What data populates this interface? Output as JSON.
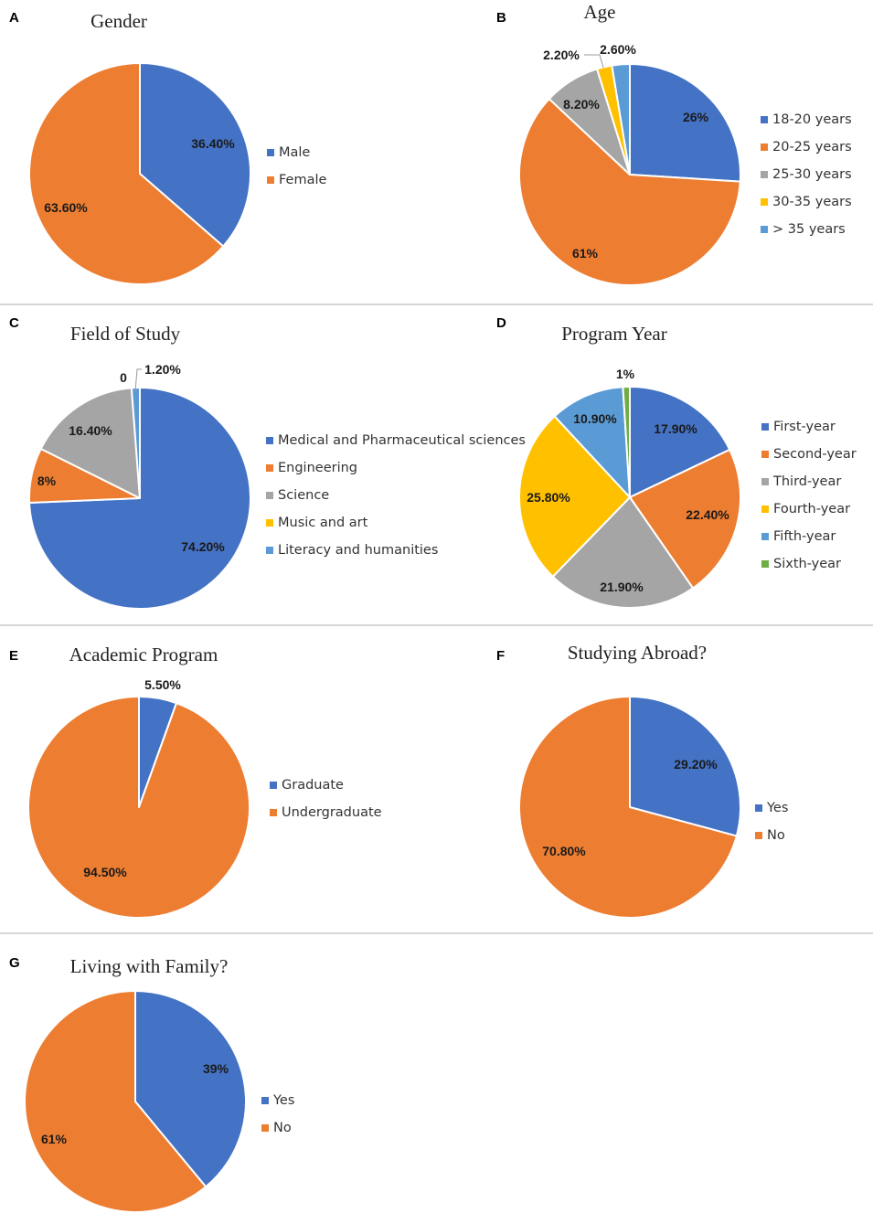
{
  "colors": {
    "blue": "#4472C4",
    "orange": "#ED7D31",
    "gray": "#A5A5A5",
    "yellow": "#FFC000",
    "lightblue": "#5B9BD5",
    "green": "#70AD47"
  },
  "chart_data": [
    {
      "panel": "A",
      "type": "pie",
      "title": "Gender",
      "categories": [
        "Male",
        "Female"
      ],
      "values": [
        36.4,
        63.6
      ],
      "data_labels": [
        "36.40%",
        "63.60%"
      ],
      "series_colors": [
        "blue",
        "orange"
      ],
      "legend_position": "right"
    },
    {
      "panel": "B",
      "type": "pie",
      "title": "Age",
      "categories": [
        "18-20 years",
        "20-25 years",
        "25-30 years",
        "30-35 years",
        "> 35 years"
      ],
      "values": [
        26,
        61,
        8.2,
        2.2,
        2.6
      ],
      "data_labels": [
        "26%",
        "61%",
        "8.20%",
        "2.20%",
        "2.60%"
      ],
      "series_colors": [
        "blue",
        "orange",
        "gray",
        "yellow",
        "lightblue"
      ],
      "legend_position": "right"
    },
    {
      "panel": "C",
      "type": "pie",
      "title": "Field of Study",
      "categories": [
        "Medical and Pharmaceutical sciences",
        "Engineering",
        "Science",
        "Music and art",
        "Literacy and humanities"
      ],
      "values": [
        74.2,
        8,
        16.4,
        0,
        1.2
      ],
      "data_labels": [
        "74.20%",
        "8%",
        "16.40%",
        "0",
        "1.20%"
      ],
      "series_colors": [
        "blue",
        "orange",
        "gray",
        "yellow",
        "lightblue"
      ],
      "legend_position": "right"
    },
    {
      "panel": "D",
      "type": "pie",
      "title": "Program Year",
      "categories": [
        "First-year",
        "Second-year",
        "Third-year",
        "Fourth-year",
        "Fifth-year",
        "Sixth-year"
      ],
      "values": [
        17.9,
        22.4,
        21.9,
        25.8,
        10.9,
        1
      ],
      "data_labels": [
        "17.90%",
        "22.40%",
        "21.90%",
        "25.80%",
        "10.90%",
        "1%"
      ],
      "series_colors": [
        "blue",
        "orange",
        "gray",
        "yellow",
        "lightblue",
        "green"
      ],
      "legend_position": "right"
    },
    {
      "panel": "E",
      "type": "pie",
      "title": "Academic Program",
      "categories": [
        "Graduate",
        "Undergraduate"
      ],
      "values": [
        5.5,
        94.5
      ],
      "data_labels": [
        "5.50%",
        "94.50%"
      ],
      "series_colors": [
        "blue",
        "orange"
      ],
      "legend_position": "right"
    },
    {
      "panel": "F",
      "type": "pie",
      "title": "Studying Abroad?",
      "categories": [
        "Yes",
        "No"
      ],
      "values": [
        29.2,
        70.8
      ],
      "data_labels": [
        "29.20%",
        "70.80%"
      ],
      "series_colors": [
        "blue",
        "orange"
      ],
      "legend_position": "right"
    },
    {
      "panel": "G",
      "type": "pie",
      "title": "Living with Family?",
      "categories": [
        "Yes",
        "No"
      ],
      "values": [
        39,
        61
      ],
      "data_labels": [
        "39%",
        "61%"
      ],
      "series_colors": [
        "blue",
        "orange"
      ],
      "legend_position": "right"
    }
  ]
}
